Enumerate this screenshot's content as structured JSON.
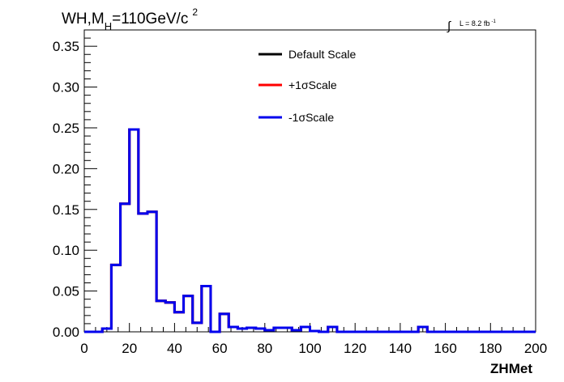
{
  "chart_data": {
    "type": "line",
    "title": "WH,M",
    "title_sub": "H",
    "title_rest": "=110GeV/c",
    "title_sup": "2",
    "luminosity_label": "L = 8.2 fb",
    "luminosity_sup": "-1",
    "xlabel": "ZHMet",
    "ylabel": "",
    "xlim": [
      0,
      200
    ],
    "ylim": [
      0,
      0.37
    ],
    "x_ticks": [
      "0",
      "20",
      "40",
      "60",
      "80",
      "100",
      "120",
      "140",
      "160",
      "180",
      "200"
    ],
    "y_ticks": [
      "0.00",
      "0.05",
      "0.10",
      "0.15",
      "0.20",
      "0.25",
      "0.30",
      "0.35"
    ],
    "grid": false,
    "legend_position": "top-center",
    "bin_width": 4,
    "series": [
      {
        "name": "Default Scale",
        "color": "#000000",
        "values": [
          0,
          0,
          0.004,
          0.082,
          0.157,
          0.248,
          0.145,
          0.147,
          0.038,
          0.036,
          0.024,
          0.044,
          0.011,
          0.056,
          0,
          0.022,
          0.006,
          0.004,
          0.005,
          0.004,
          0.002,
          0.005,
          0.005,
          0.002,
          0.006,
          0.001,
          0,
          0.006,
          0,
          0,
          0,
          0,
          0,
          0,
          0,
          0,
          0,
          0.006,
          0,
          0,
          0,
          0,
          0,
          0,
          0,
          0,
          0,
          0,
          0,
          0
        ]
      },
      {
        "name": "+1σScale",
        "color": "#ff0000",
        "values": [
          0,
          0,
          0.004,
          0.082,
          0.157,
          0.248,
          0.145,
          0.147,
          0.038,
          0.036,
          0.024,
          0.044,
          0.011,
          0.056,
          0,
          0.022,
          0.006,
          0.004,
          0.005,
          0.004,
          0.002,
          0.005,
          0.005,
          0.002,
          0.006,
          0.001,
          0,
          0.006,
          0,
          0,
          0,
          0,
          0,
          0,
          0,
          0,
          0,
          0.006,
          0,
          0,
          0,
          0,
          0,
          0,
          0,
          0,
          0,
          0,
          0,
          0
        ]
      },
      {
        "name": "-1σScale",
        "color": "#0000ee",
        "values": [
          0,
          0,
          0.004,
          0.082,
          0.157,
          0.248,
          0.145,
          0.147,
          0.038,
          0.036,
          0.024,
          0.044,
          0.011,
          0.056,
          0,
          0.022,
          0.006,
          0.004,
          0.005,
          0.004,
          0.002,
          0.005,
          0.005,
          0.002,
          0.006,
          0.001,
          0,
          0.006,
          0,
          0,
          0,
          0,
          0,
          0,
          0,
          0,
          0,
          0.006,
          0,
          0,
          0,
          0,
          0,
          0,
          0,
          0,
          0,
          0,
          0,
          0
        ]
      }
    ]
  }
}
